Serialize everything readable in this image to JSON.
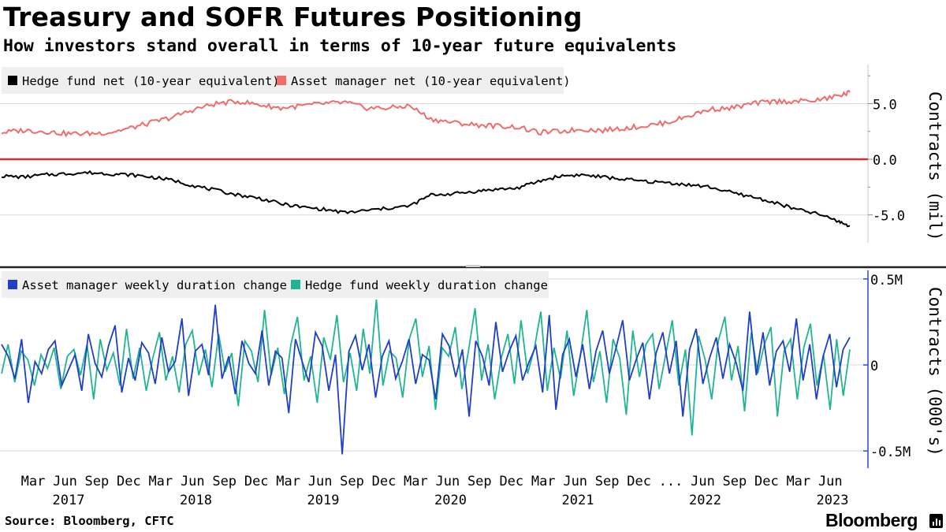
{
  "header": {
    "title": "Treasury and SOFR Futures Positioning",
    "subtitle": "How investors stand overall in terms of 10-year future equivalents"
  },
  "footer": {
    "source": "Source: Bloomberg, CFTC",
    "brand": "Bloomberg"
  },
  "colors": {
    "hedge_fund_net": "#000000",
    "asset_manager_net": "#f26b6b",
    "zero_line": "#e8262a",
    "asset_manager_weekly": "#1f3fc4",
    "hedge_fund_weekly": "#1fb592",
    "grid": "#d9d9d9",
    "axis_accent": "#2b4bd6",
    "legend_bg": "#efefef"
  },
  "x_axis": {
    "month_labels": [
      "Mar",
      "Jun",
      "Sep",
      "Dec",
      "Mar",
      "Jun",
      "Sep",
      "Dec",
      "Mar",
      "Jun",
      "Sep",
      "Dec",
      "Mar",
      "Jun",
      "Sep",
      "Dec",
      "Mar",
      "Jun",
      "Sep",
      "Dec",
      "...",
      "Jun",
      "Sep",
      "Dec",
      "Mar",
      "Jun"
    ],
    "year_labels": [
      "2017",
      "2018",
      "2019",
      "2020",
      "2021",
      "2022",
      "2023"
    ]
  },
  "chart_data": [
    {
      "type": "line",
      "ylabel": "Contracts (mil)",
      "y_ticks": [
        "5.0",
        "0.0",
        "-5.0"
      ],
      "ylim": [
        -7.5,
        8.5
      ],
      "reference_line": 0,
      "x_range": [
        "2017-01",
        "2023-08"
      ],
      "series": [
        {
          "name": "Hedge fund net (10-year equivalent)",
          "x": [
            "2017-01",
            "2017-03",
            "2017-05",
            "2017-07",
            "2017-09",
            "2017-11",
            "2018-01",
            "2018-03",
            "2018-05",
            "2018-07",
            "2018-09",
            "2018-11",
            "2019-01",
            "2019-03",
            "2019-05",
            "2019-07",
            "2019-09",
            "2019-11",
            "2020-01",
            "2020-03",
            "2020-05",
            "2020-07",
            "2020-09",
            "2020-11",
            "2021-01",
            "2021-03",
            "2021-05",
            "2021-07",
            "2021-09",
            "2021-11",
            "2022-01",
            "2022-03",
            "2022-05",
            "2022-07",
            "2022-09",
            "2022-11",
            "2023-01",
            "2023-03",
            "2023-05",
            "2023-07",
            "2023-08"
          ],
          "values": [
            -1.5,
            -1.6,
            -1.4,
            -1.3,
            -1.2,
            -1.3,
            -1.4,
            -1.6,
            -1.9,
            -2.4,
            -2.8,
            -3.2,
            -3.5,
            -4.0,
            -4.3,
            -4.5,
            -4.8,
            -4.6,
            -4.4,
            -4.2,
            -3.2,
            -3.1,
            -2.9,
            -2.7,
            -2.6,
            -2.0,
            -1.5,
            -1.4,
            -1.6,
            -1.8,
            -2.0,
            -2.1,
            -2.3,
            -2.5,
            -3.0,
            -3.4,
            -3.9,
            -4.5,
            -4.9,
            -5.6,
            -6.0
          ]
        },
        {
          "name": "Asset manager net (10-year equivalent)",
          "x": [
            "2017-01",
            "2017-03",
            "2017-05",
            "2017-07",
            "2017-09",
            "2017-11",
            "2018-01",
            "2018-03",
            "2018-05",
            "2018-07",
            "2018-09",
            "2018-11",
            "2019-01",
            "2019-03",
            "2019-05",
            "2019-07",
            "2019-09",
            "2019-11",
            "2020-01",
            "2020-03",
            "2020-05",
            "2020-07",
            "2020-09",
            "2020-11",
            "2021-01",
            "2021-03",
            "2021-05",
            "2021-07",
            "2021-09",
            "2021-11",
            "2022-01",
            "2022-03",
            "2022-05",
            "2022-07",
            "2022-09",
            "2022-11",
            "2023-01",
            "2023-03",
            "2023-05",
            "2023-07",
            "2023-08"
          ],
          "values": [
            2.4,
            2.6,
            2.5,
            2.3,
            2.3,
            2.4,
            2.8,
            3.3,
            3.8,
            4.5,
            5.0,
            5.2,
            4.9,
            4.6,
            4.8,
            5.0,
            5.1,
            4.6,
            4.6,
            4.8,
            3.6,
            3.3,
            3.1,
            3.0,
            2.9,
            2.4,
            2.5,
            2.7,
            2.6,
            2.8,
            3.0,
            3.3,
            3.9,
            4.5,
            4.6,
            5.0,
            5.2,
            5.2,
            5.3,
            5.7,
            6.0
          ]
        }
      ]
    },
    {
      "type": "line",
      "ylabel": "Contracts (000's)",
      "y_ticks": [
        "0.5M",
        "0",
        "-0.5M"
      ],
      "ylim": [
        -0.6,
        0.55
      ],
      "x_range": [
        "2017-01",
        "2023-08"
      ],
      "series": [
        {
          "name": "Asset manager weekly duration change",
          "values": [
            0.12,
            0.05,
            -0.08,
            0.15,
            -0.22,
            0.02,
            -0.05,
            0.09,
            0.14,
            -0.12,
            -0.03,
            0.06,
            -0.15,
            0.18,
            0.01,
            -0.07,
            0.11,
            0.23,
            -0.16,
            0.04,
            -0.09,
            0.13,
            0.07,
            -0.11,
            0.16,
            -0.04,
            0.02,
            0.27,
            -0.18,
            0.08,
            0.12,
            -0.06,
            0.35,
            -0.08,
            0.05,
            -0.17,
            0.14,
            0.01,
            -0.05,
            0.2,
            -0.12,
            0.08,
            0.04,
            -0.28,
            0.15,
            0.02,
            -0.1,
            0.19,
            0.11,
            -0.15,
            0.06,
            -0.52,
            0.08,
            0.17,
            -0.03,
            0.12,
            -0.19,
            0.05,
            0.14,
            -0.08,
            0.02,
            0.15,
            -0.11,
            0.06,
            0.03,
            -0.2,
            0.18,
            0.11,
            -0.07,
            0.09,
            -0.3,
            0.14,
            0.05,
            -0.12,
            0.25,
            -0.04,
            0.08,
            0.17,
            -0.09,
            0.02,
            0.11,
            -0.16,
            0.29,
            -0.26,
            0.06,
            0.15,
            -0.07,
            0.12,
            -0.14,
            0.08,
            0.2,
            -0.05,
            0.1,
            0.26,
            -0.09,
            0.03,
            0.13,
            -0.2,
            0.07,
            0.19,
            -0.05,
            0.14,
            -0.3,
            0.09,
            0.21,
            -0.11,
            0.04,
            0.16,
            -0.08,
            0.12,
            0.01,
            -0.15,
            0.31,
            -0.06,
            0.19,
            -0.12,
            0.08,
            0.14,
            -0.04,
            0.27,
            -0.09,
            0.12,
            -0.2,
            0.05,
            0.18,
            -0.13,
            0.09,
            0.16
          ],
          "unit": "M"
        },
        {
          "name": "Hedge fund weekly duration change",
          "values": [
            -0.05,
            0.12,
            -0.1,
            0.08,
            0.03,
            -0.12,
            0.06,
            -0.02,
            0.1,
            -0.14,
            0.05,
            0.09,
            -0.06,
            0.12,
            -0.2,
            0.15,
            -0.03,
            0.07,
            -0.12,
            0.21,
            -0.08,
            0.1,
            -0.15,
            0.04,
            0.19,
            -0.09,
            0.05,
            -0.16,
            0.12,
            0.2,
            -0.06,
            0.09,
            -0.13,
            0.18,
            -0.04,
            0.07,
            -0.24,
            0.14,
            0.08,
            -0.1,
            0.32,
            -0.06,
            0.1,
            -0.17,
            0.12,
            0.28,
            -0.09,
            0.05,
            -0.22,
            0.16,
            0.03,
            0.29,
            -0.1,
            0.07,
            -0.15,
            0.21,
            -0.05,
            0.38,
            -0.12,
            0.08,
            0.04,
            -0.19,
            0.15,
            0.27,
            -0.07,
            0.11,
            -0.26,
            0.1,
            0.05,
            0.22,
            -0.14,
            0.08,
            0.33,
            -0.09,
            0.12,
            -0.2,
            0.04,
            0.18,
            -0.11,
            0.26,
            -0.05,
            0.09,
            0.31,
            -0.15,
            0.1,
            -0.08,
            0.2,
            -0.18,
            0.05,
            0.32,
            -0.1,
            0.08,
            -0.22,
            0.15,
            0.04,
            -0.29,
            0.2,
            -0.07,
            0.12,
            0.18,
            -0.14,
            0.06,
            0.26,
            -0.12,
            0.09,
            -0.41,
            0.17,
            0.03,
            -0.2,
            0.14,
            0.28,
            -0.09,
            0.11,
            -0.27,
            0.19,
            -0.05,
            0.12,
            0.22,
            -0.3,
            0.08,
            0.15,
            -0.2,
            0.1,
            0.24,
            -0.12,
            0.06,
            -0.26,
            0.15,
            -0.18,
            0.09
          ],
          "unit": "M"
        }
      ]
    }
  ]
}
